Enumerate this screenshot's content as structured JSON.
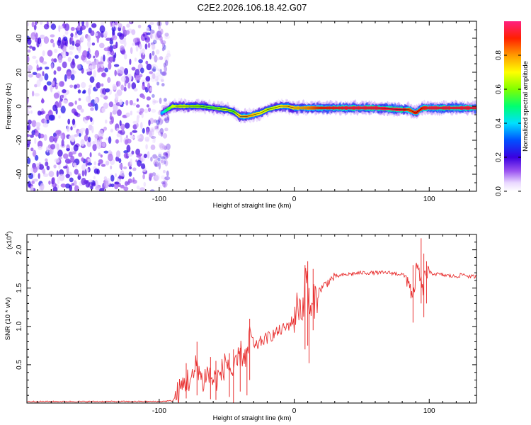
{
  "title": "C2E2.2026.106.18.42.G07",
  "chart_data": [
    {
      "type": "heatmap",
      "title": "C2E2.2026.106.18.42.G07",
      "xlabel": "Height of straight line (km)",
      "ylabel": "Frequency (Hz)",
      "xlim": [
        -198,
        135
      ],
      "ylim": [
        -50,
        50
      ],
      "xticks": [
        -100,
        0,
        100
      ],
      "xtick_labels": [
        "-100",
        "0",
        "100"
      ],
      "yticks": [
        -40,
        -20,
        0,
        20,
        40
      ],
      "ytick_labels": [
        "-40",
        "-20",
        "0",
        "20",
        "40"
      ],
      "noise_region_x": [
        -198,
        -98
      ],
      "ridge": {
        "x": [
          -98,
          -90,
          -80,
          -70,
          -60,
          -50,
          -45,
          -40,
          -35,
          -30,
          -25,
          -20,
          -15,
          -10,
          -5,
          0,
          10,
          20,
          40,
          60,
          80,
          85,
          90,
          95,
          100,
          110,
          120,
          135
        ],
        "freq": [
          -4,
          0,
          0,
          0,
          -1,
          -2,
          -3,
          -6,
          -6,
          -5,
          -4,
          -2,
          -1,
          0,
          0,
          -1,
          -1,
          -1,
          -1,
          -1,
          -2,
          -2,
          -4,
          -1,
          -1,
          -1,
          -1,
          -1
        ],
        "amplitude": [
          0.3,
          0.6,
          0.6,
          0.55,
          0.5,
          0.6,
          0.5,
          0.7,
          0.75,
          0.7,
          0.65,
          0.6,
          0.6,
          0.65,
          0.7,
          0.7,
          0.75,
          0.85,
          0.9,
          0.9,
          0.9,
          0.8,
          0.85,
          0.85,
          0.9,
          0.9,
          0.9,
          0.9
        ]
      },
      "colorbar": {
        "label": "Normalized spectral amplitude",
        "range": [
          0,
          1
        ],
        "ticks": [
          0.0,
          0.2,
          0.4,
          0.6,
          0.8
        ],
        "tick_labels": [
          "0.0",
          "0.2",
          "0.4",
          "0.6",
          "0.8"
        ]
      }
    },
    {
      "type": "line",
      "xlabel": "Height of straight line (km)",
      "ylabel": "SNR (10 * v/v)",
      "yscale_label": "(x10",
      "yscale_exp": "4",
      "xlim": [
        -198,
        135
      ],
      "ylim": [
        0,
        2.2
      ],
      "xticks": [
        -100,
        0,
        100
      ],
      "xtick_labels": [
        "-100",
        "0",
        "100"
      ],
      "yticks": [
        0.5,
        1.0,
        1.5,
        2.0
      ],
      "ytick_labels": [
        "0.5",
        "1.0",
        "1.5",
        "2.0"
      ],
      "series": [
        {
          "name": "SNR",
          "color": "#e83030",
          "x": [
            -198,
            -150,
            -100,
            -90,
            -85,
            -80,
            -75,
            -72,
            -68,
            -65,
            -60,
            -55,
            -50,
            -45,
            -40,
            -35,
            -32,
            -30,
            -25,
            -20,
            -15,
            -10,
            -5,
            0,
            3,
            6,
            9,
            12,
            15,
            20,
            25,
            30,
            40,
            50,
            60,
            70,
            80,
            85,
            88,
            90,
            92,
            95,
            97,
            100,
            110,
            120,
            125,
            130,
            135
          ],
          "values": [
            0.02,
            0.02,
            0.02,
            0.03,
            0.15,
            0.3,
            0.3,
            0.55,
            0.25,
            0.4,
            0.3,
            0.35,
            0.55,
            0.35,
            0.65,
            0.6,
            0.95,
            0.7,
            0.8,
            0.85,
            0.9,
            0.95,
            1.0,
            1.1,
            1.3,
            1.2,
            1.7,
            1.1,
            1.35,
            1.5,
            1.58,
            1.65,
            1.68,
            1.7,
            1.7,
            1.7,
            1.68,
            1.6,
            1.3,
            1.7,
            1.75,
            1.45,
            1.7,
            1.7,
            1.67,
            1.65,
            1.68,
            1.65,
            1.65
          ],
          "spikes": [
            {
              "x": -80,
              "values": [
                0.06,
                0.52
              ]
            },
            {
              "x": -72,
              "values": [
                0.1,
                0.8
              ]
            },
            {
              "x": -62,
              "values": [
                0.05,
                0.6
              ]
            },
            {
              "x": -58,
              "values": [
                0.04,
                0.55
              ]
            },
            {
              "x": -48,
              "values": [
                0.08,
                0.65
              ]
            },
            {
              "x": -45,
              "values": [
                0.0,
                0.7
              ]
            },
            {
              "x": -40,
              "values": [
                0.15,
                0.72
              ]
            },
            {
              "x": -35,
              "values": [
                0.1,
                0.65
              ]
            },
            {
              "x": -33,
              "values": [
                0.3,
                1.1
              ]
            },
            {
              "x": 8,
              "values": [
                0.7,
                1.8
              ]
            },
            {
              "x": 10,
              "values": [
                0.75,
                1.85
              ]
            },
            {
              "x": 11,
              "values": [
                0.52,
                1.5
              ]
            },
            {
              "x": 14,
              "values": [
                0.95,
                1.75
              ]
            },
            {
              "x": 88,
              "values": [
                1.05,
                1.8
              ]
            },
            {
              "x": 94,
              "values": [
                1.3,
                2.15
              ]
            },
            {
              "x": 96,
              "values": [
                1.12,
                1.95
              ]
            },
            {
              "x": 98,
              "values": [
                1.3,
                1.85
              ]
            }
          ]
        }
      ]
    }
  ]
}
